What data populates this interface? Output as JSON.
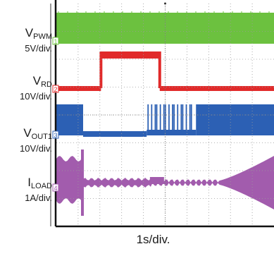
{
  "chart_data": {
    "type": "oscilloscope",
    "timebase": "1s/div.",
    "grid": true,
    "divisions": {
      "horizontal": 10,
      "vertical": 8
    },
    "channels": [
      {
        "id": "1",
        "name_main": "V",
        "name_sub": "PWM",
        "scale": "5V/div.",
        "color": "#6cc13f",
        "description": "PWM signal continuously switching for the whole capture"
      },
      {
        "id": "2",
        "name_main": "V",
        "name_sub": "RD",
        "scale": "10V/div.",
        "color": "#e12a2a",
        "description": "Low, goes high between about 2.5 div and 5.5 div, then low again"
      },
      {
        "id": "3",
        "name_main": "V",
        "name_sub": "OUT1",
        "scale": "10V/div.",
        "color": "#2c60b4",
        "description": "Switching, stops near 1.4 div, resumes in bursts near 4.8 div"
      },
      {
        "id": "4",
        "name_main": "I",
        "name_sub": "LOAD",
        "scale": "1A/div.",
        "color": "#a25cad",
        "description": "Ripple current envelope, collapses after 1.4 div and grows again after about 8 div"
      }
    ]
  }
}
